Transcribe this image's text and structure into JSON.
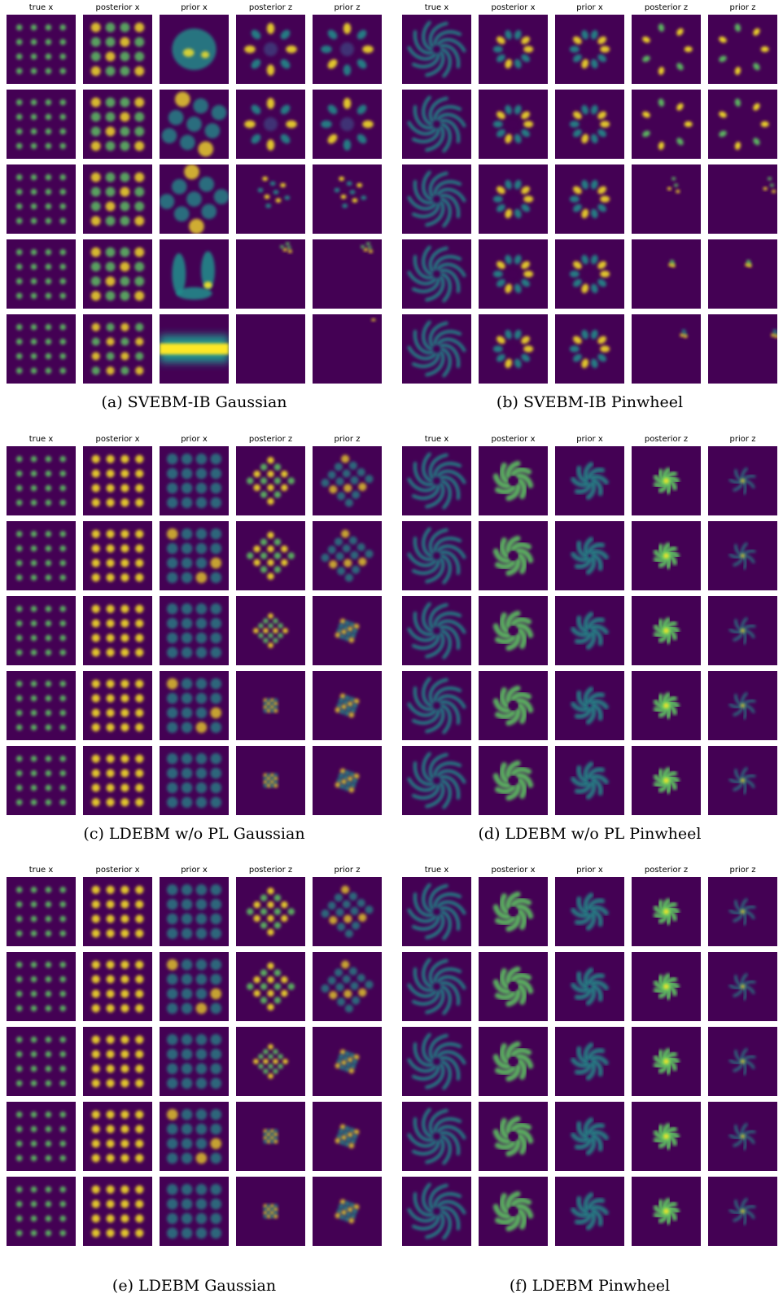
{
  "column_labels": [
    "true x",
    "posterior x",
    "prior x",
    "posterior z",
    "prior z"
  ],
  "panels": [
    {
      "id": "a",
      "caption": "(a)  SVEBM-IB Gaussian",
      "dataset": "gaussian",
      "model": "svebm"
    },
    {
      "id": "b",
      "caption": "(b)  SVEBM-IB Pinwheel",
      "dataset": "pinwheel",
      "model": "svebm"
    },
    {
      "id": "c",
      "caption": "(c)  LDEBM w/o PL Gaussian",
      "dataset": "gaussian",
      "model": "ldebm_nopl"
    },
    {
      "id": "d",
      "caption": "(d)  LDEBM w/o PL Pinwheel",
      "dataset": "pinwheel",
      "model": "ldebm_nopl"
    },
    {
      "id": "e",
      "caption": "(e)  LDEBM Gaussian",
      "dataset": "gaussian",
      "model": "ldebm"
    },
    {
      "id": "f",
      "caption": "(f)  LDEBM Pinwheel",
      "dataset": "pinwheel",
      "model": "ldebm"
    }
  ],
  "rows_per_panel": 5,
  "colors": {
    "background": "#440154",
    "low": "#3b528b",
    "mid": "#21918c",
    "high": "#5ec962",
    "peak": "#fde725"
  }
}
